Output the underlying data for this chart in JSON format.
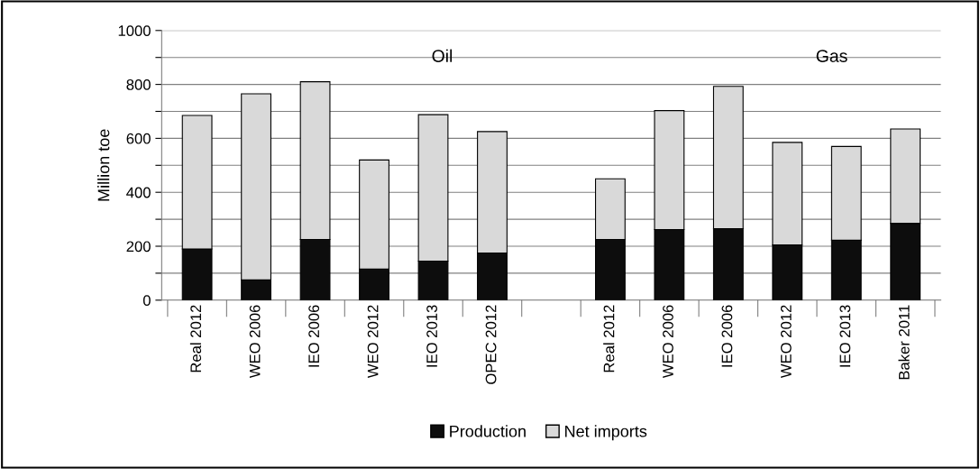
{
  "chart_data": {
    "type": "bar",
    "stacked": true,
    "ylabel": "Million toe",
    "categories": [
      "Real 2012",
      "WEO 2006",
      "IEO 2006",
      "WEO 2012",
      "IEO 2013",
      "OPEC 2012",
      null,
      "Real 2012",
      "WEO 2006",
      "IEO 2006",
      "WEO 2012",
      "IEO 2013",
      "Baker 2011"
    ],
    "series": [
      {
        "name": "Production",
        "color": "#0d0d0d",
        "values": [
          190,
          75,
          225,
          115,
          145,
          175,
          null,
          225,
          262,
          265,
          205,
          222,
          285
        ]
      },
      {
        "name": "Net imports",
        "color": "#d9d9d9",
        "values": [
          495,
          690,
          585,
          405,
          543,
          450,
          null,
          225,
          441,
          528,
          380,
          348,
          350
        ]
      }
    ],
    "ylim": [
      0,
      1000
    ],
    "yticks": [
      0,
      {
        "value": 100,
        "label": null
      },
      200,
      {
        "value": 300,
        "label": null
      },
      400,
      {
        "value": 500,
        "label": null
      },
      600,
      {
        "value": 700,
        "label": null
      },
      800,
      {
        "value": 900,
        "label": null
      },
      1000
    ],
    "grid": "y",
    "legend": "bottom",
    "annotations": [
      "Oil",
      "Gas"
    ]
  }
}
